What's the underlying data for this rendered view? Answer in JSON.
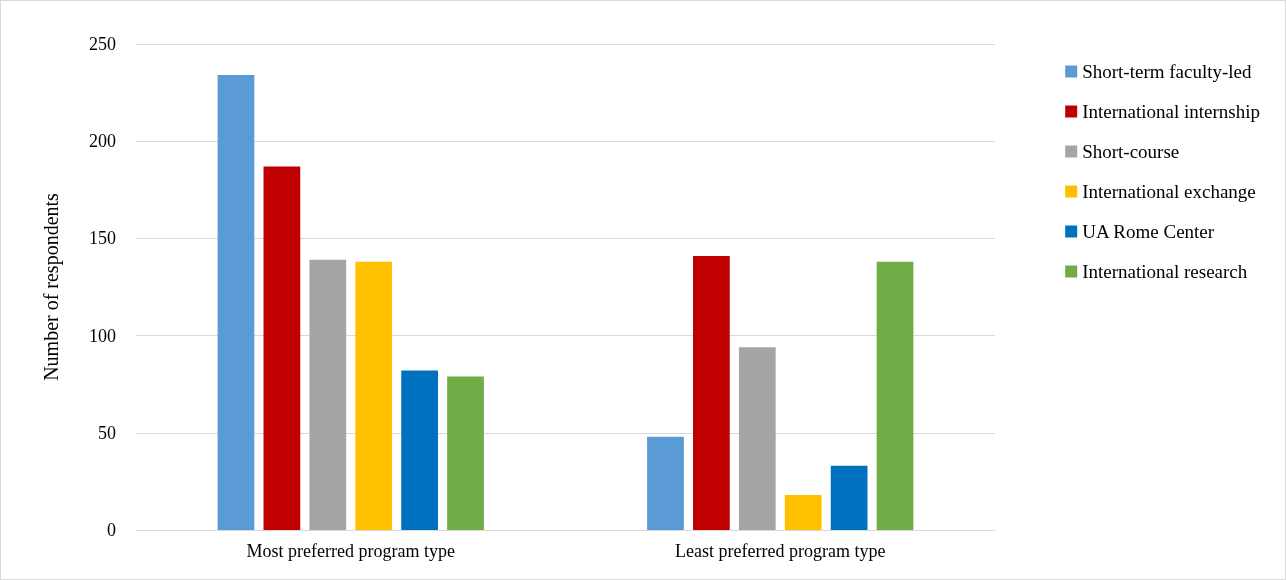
{
  "chart_data": {
    "type": "bar",
    "ylabel": "Number of respondents",
    "categories": [
      "Most preferred program type",
      "Least preferred program type"
    ],
    "series": [
      {
        "name": "Short-term faculty-led",
        "color": "#5b9bd5",
        "values": [
          234,
          48
        ]
      },
      {
        "name": "International internship",
        "color": "#c00000",
        "values": [
          187,
          141
        ]
      },
      {
        "name": "Short-course",
        "color": "#a5a5a5",
        "values": [
          139,
          94
        ]
      },
      {
        "name": "International exchange",
        "color": "#ffc000",
        "values": [
          138,
          18
        ]
      },
      {
        "name": "UA Rome Center",
        "color": "#0070c0",
        "values": [
          82,
          33
        ]
      },
      {
        "name": "International research",
        "color": "#70ad47",
        "values": [
          79,
          138
        ]
      }
    ],
    "ylim": [
      0,
      250
    ],
    "yticks": [
      0,
      50,
      100,
      150,
      200,
      250
    ],
    "grid": "y",
    "legend": "right"
  }
}
